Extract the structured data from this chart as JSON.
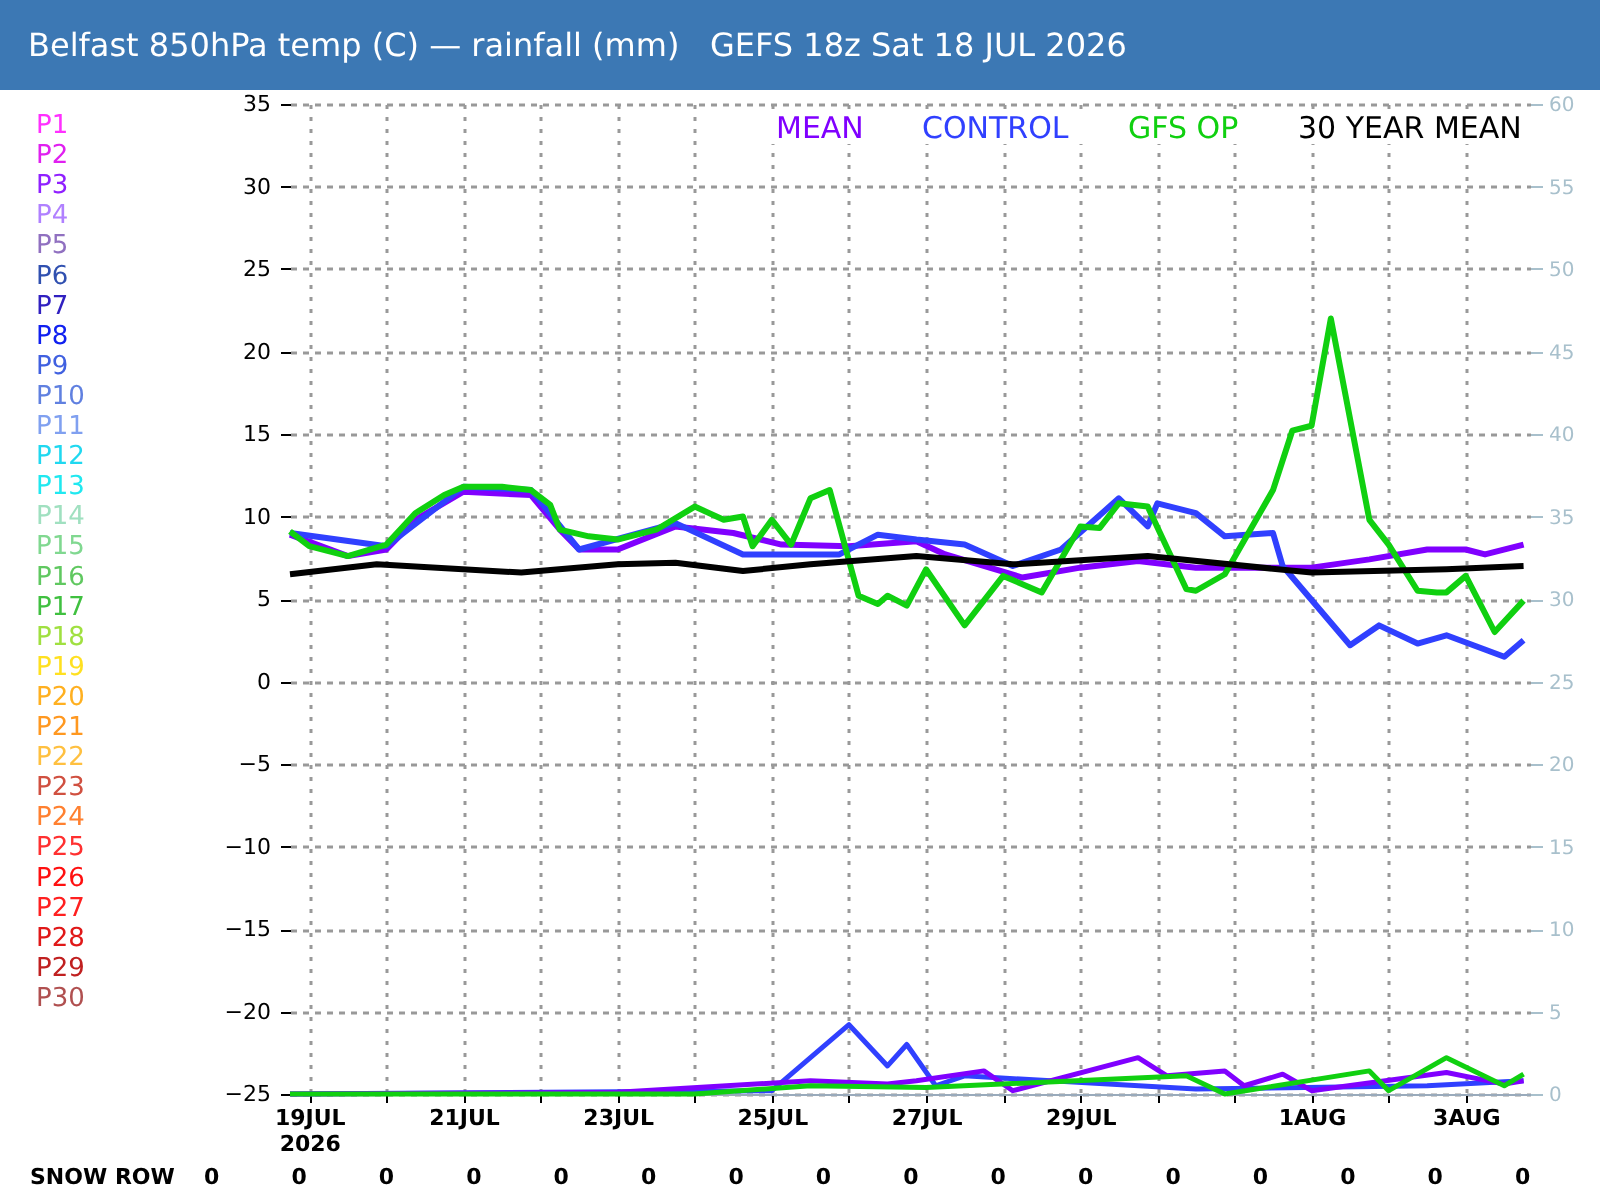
{
  "chart_data": {
    "type": "line",
    "title": "Belfast 850hPa temp (C) — rainfall (mm)   GEFS 18z Sat 18 JUL 2026",
    "xlim": [
      "2026-07-18T18:00",
      "2026-08-03T20:00"
    ],
    "xticks": [
      {
        "value": "2026-07-19",
        "label": "19JUL 2026"
      },
      {
        "value": "2026-07-20",
        "label": null
      },
      {
        "value": "2026-07-21",
        "label": "21JUL"
      },
      {
        "value": "2026-07-22",
        "label": null
      },
      {
        "value": "2026-07-23",
        "label": "23JUL"
      },
      {
        "value": "2026-07-24",
        "label": null
      },
      {
        "value": "2026-07-25",
        "label": "25JUL"
      },
      {
        "value": "2026-07-26",
        "label": null
      },
      {
        "value": "2026-07-27",
        "label": "27JUL"
      },
      {
        "value": "2026-07-28",
        "label": null
      },
      {
        "value": "2026-07-29",
        "label": "29JUL"
      },
      {
        "value": "2026-07-30",
        "label": null
      },
      {
        "value": "2026-07-31",
        "label": null
      },
      {
        "value": "2026-08-01",
        "label": "1AUG"
      },
      {
        "value": "2026-08-02",
        "label": null
      },
      {
        "value": "2026-08-03",
        "label": "3AUG"
      }
    ],
    "ylim": [
      -25,
      35
    ],
    "yticks": [
      -25,
      -20,
      -15,
      -10,
      -5,
      0,
      5,
      10,
      15,
      20,
      25,
      30,
      35
    ],
    "y2lim": [
      0,
      60
    ],
    "y2ticks": [
      0,
      5,
      10,
      15,
      20,
      25,
      30,
      35,
      40,
      45,
      50,
      55,
      60
    ],
    "grid": true,
    "legend": "top right",
    "series": [
      {
        "name": "P1",
        "color": "#ff30ff"
      },
      {
        "name": "P2",
        "color": "#e020f0"
      },
      {
        "name": "P3",
        "color": "#9020ff"
      },
      {
        "name": "P4",
        "color": "#b080ff"
      },
      {
        "name": "P5",
        "color": "#9070c0"
      },
      {
        "name": "P6",
        "color": "#3050b0"
      },
      {
        "name": "P7",
        "color": "#3020c0"
      },
      {
        "name": "P8",
        "color": "#1020f0"
      },
      {
        "name": "P9",
        "color": "#4060e0"
      },
      {
        "name": "P10",
        "color": "#6080e0"
      },
      {
        "name": "P11",
        "color": "#80a0f0"
      },
      {
        "name": "P12",
        "color": "#20d8f0"
      },
      {
        "name": "P13",
        "color": "#20e8f0"
      },
      {
        "name": "P14",
        "color": "#a0e0c0"
      },
      {
        "name": "P15",
        "color": "#80d890"
      },
      {
        "name": "P16",
        "color": "#60c860"
      },
      {
        "name": "P17",
        "color": "#40c040"
      },
      {
        "name": "P18",
        "color": "#a0e040"
      },
      {
        "name": "P19",
        "color": "#ffe020"
      },
      {
        "name": "P20",
        "color": "#ffb020"
      },
      {
        "name": "P21",
        "color": "#ff9820"
      },
      {
        "name": "P22",
        "color": "#ffc040"
      },
      {
        "name": "P23",
        "color": "#d05040"
      },
      {
        "name": "P24",
        "color": "#ff8030"
      },
      {
        "name": "P25",
        "color": "#ff3030"
      },
      {
        "name": "P26",
        "color": "#ff1010"
      },
      {
        "name": "P27",
        "color": "#ff2020"
      },
      {
        "name": "P28",
        "color": "#e01818"
      },
      {
        "name": "P29",
        "color": "#c02020"
      },
      {
        "name": "P30",
        "color": "#b05050"
      },
      {
        "name": "MEAN",
        "color": "#8000ff",
        "x": [
          "2026-07-18T18:00",
          "2026-07-19T12:00",
          "2026-07-20T00:00",
          "2026-07-20T09:00",
          "2026-07-21T00:00",
          "2026-07-21T21:00",
          "2026-07-22T06:00",
          "2026-07-22T12:00",
          "2026-07-23T00:00",
          "2026-07-23T18:00",
          "2026-07-24T12:00",
          "2026-07-25T03:00",
          "2026-07-26T00:00",
          "2026-07-26T21:00",
          "2026-07-27T06:00",
          "2026-07-28T06:00",
          "2026-07-29T00:00",
          "2026-07-29T18:00",
          "2026-07-30T12:00",
          "2026-08-01T00:00",
          "2026-08-01T18:00",
          "2026-08-02T12:00",
          "2026-08-03T00:00",
          "2026-08-03T06:00",
          "2026-08-03T18:00"
        ],
        "values": [
          8.9,
          7.6,
          8.0,
          9.8,
          11.5,
          11.3,
          9.2,
          8.0,
          8.0,
          9.4,
          9.0,
          8.3,
          8.2,
          8.5,
          7.7,
          6.3,
          6.9,
          7.3,
          6.9,
          6.9,
          7.4,
          8.0,
          8.0,
          7.7,
          8.3
        ]
      },
      {
        "name": "CONTROL",
        "color": "#3040ff",
        "x": [
          "2026-07-18T18:00",
          "2026-07-20T00:00",
          "2026-07-21T00:00",
          "2026-07-21T21:00",
          "2026-07-22T12:00",
          "2026-07-23T18:00",
          "2026-07-24T15:00",
          "2026-07-25T21:00",
          "2026-07-26T09:00",
          "2026-07-26T21:00",
          "2026-07-27T12:00",
          "2026-07-28T03:00",
          "2026-07-28T18:00",
          "2026-07-29T12:00",
          "2026-07-29T21:00",
          "2026-07-30T00:00",
          "2026-07-30T12:00",
          "2026-07-30T21:00",
          "2026-07-31T12:00",
          "2026-07-31T15:00",
          "2026-08-01T12:00",
          "2026-08-01T21:00",
          "2026-08-02T09:00",
          "2026-08-02T18:00",
          "2026-08-03T12:00",
          "2026-08-03T18:00"
        ],
        "values": [
          9.0,
          8.2,
          11.8,
          11.6,
          8.0,
          9.6,
          7.7,
          7.7,
          8.9,
          8.6,
          8.3,
          7.0,
          8.0,
          11.1,
          9.4,
          10.8,
          10.2,
          8.8,
          9.0,
          7.0,
          2.2,
          3.4,
          2.3,
          2.8,
          1.5,
          2.5
        ]
      },
      {
        "name": "GFS OP",
        "color": "#10d010",
        "x": [
          "2026-07-18T18:00",
          "2026-07-19T00:00",
          "2026-07-19T12:00",
          "2026-07-20T00:00",
          "2026-07-20T09:00",
          "2026-07-20T18:00",
          "2026-07-21T00:00",
          "2026-07-21T12:00",
          "2026-07-21T21:00",
          "2026-07-22T03:00",
          "2026-07-22T06:00",
          "2026-07-22T15:00",
          "2026-07-23T00:00",
          "2026-07-23T12:00",
          "2026-07-24T00:00",
          "2026-07-24T09:00",
          "2026-07-24T15:00",
          "2026-07-24T18:00",
          "2026-07-25T00:00",
          "2026-07-25T06:00",
          "2026-07-25T12:00",
          "2026-07-25T18:00",
          "2026-07-26T03:00",
          "2026-07-26T09:00",
          "2026-07-26T12:00",
          "2026-07-26T18:00",
          "2026-07-27T00:00",
          "2026-07-27T12:00",
          "2026-07-28T00:00",
          "2026-07-28T12:00",
          "2026-07-29T00:00",
          "2026-07-29T06:00",
          "2026-07-29T12:00",
          "2026-07-29T21:00",
          "2026-07-30T09:00",
          "2026-07-30T12:00",
          "2026-07-30T21:00",
          "2026-07-31T12:00",
          "2026-07-31T18:00",
          "2026-08-01T00:00",
          "2026-08-01T06:00",
          "2026-08-01T18:00",
          "2026-08-02T00:00",
          "2026-08-02T09:00",
          "2026-08-02T15:00",
          "2026-08-02T18:00",
          "2026-08-03T00:00",
          "2026-08-03T09:00",
          "2026-08-03T18:00"
        ],
        "values": [
          9.1,
          8.2,
          7.6,
          8.3,
          10.2,
          11.3,
          11.8,
          11.8,
          11.6,
          10.7,
          9.2,
          8.8,
          8.6,
          9.2,
          10.6,
          9.8,
          10.0,
          8.2,
          9.8,
          8.3,
          11.1,
          11.6,
          5.2,
          4.7,
          5.2,
          4.6,
          6.8,
          3.4,
          6.4,
          5.4,
          9.4,
          9.3,
          10.8,
          10.6,
          5.6,
          5.5,
          6.5,
          11.6,
          15.2,
          15.5,
          22.0,
          9.8,
          8.3,
          5.5,
          5.4,
          5.4,
          6.4,
          3.0,
          4.9
        ]
      },
      {
        "name": "30 YEAR MEAN",
        "color": "#000000",
        "x": [
          "2026-07-18T18:00",
          "2026-07-19T21:00",
          "2026-07-21T18:00",
          "2026-07-23T00:00",
          "2026-07-23T18:00",
          "2026-07-24T15:00",
          "2026-07-25T12:00",
          "2026-07-26T21:00",
          "2026-07-28T03:00",
          "2026-07-29T21:00",
          "2026-08-01T00:00",
          "2026-08-02T18:00",
          "2026-08-03T18:00"
        ],
        "values": [
          6.5,
          7.1,
          6.6,
          7.1,
          7.2,
          6.7,
          7.1,
          7.6,
          7.1,
          7.6,
          6.6,
          6.8,
          7.0
        ]
      },
      {
        "color": "#3040ff",
        "axis": "y2",
        "x": [
          "2026-07-18T18:00",
          "2026-07-25T00:00",
          "2026-07-26T00:00",
          "2026-07-26T12:00",
          "2026-07-26T18:00",
          "2026-07-27T03:00",
          "2026-07-27T12:00",
          "2026-07-30T12:00",
          "2026-08-02T12:00",
          "2026-08-03T18:00"
        ],
        "values": [
          0,
          0.2,
          4.2,
          1.7,
          3.0,
          0.5,
          1.1,
          0.3,
          0.5,
          0.8
        ]
      },
      {
        "color": "#8000ff",
        "axis": "y2",
        "x": [
          "2026-07-18T18:00",
          "2026-07-23T00:00",
          "2026-07-25T12:00",
          "2026-07-26T12:00",
          "2026-07-26T21:00",
          "2026-07-27T18:00",
          "2026-07-28T03:00",
          "2026-07-29T18:00",
          "2026-07-30T03:00",
          "2026-07-30T21:00",
          "2026-07-31T03:00",
          "2026-07-31T15:00",
          "2026-08-01T00:00",
          "2026-08-02T18:00",
          "2026-08-03T12:00",
          "2026-08-03T18:00"
        ],
        "values": [
          0,
          0.1,
          0.8,
          0.6,
          0.8,
          1.4,
          0.2,
          2.2,
          1.1,
          1.4,
          0.5,
          1.2,
          0.2,
          1.3,
          0.6,
          0.8
        ]
      },
      {
        "color": "#10d010",
        "axis": "y2",
        "x": [
          "2026-07-18T18:00",
          "2026-07-24T00:00",
          "2026-07-25T12:00",
          "2026-07-27T00:00",
          "2026-07-30T09:00",
          "2026-07-30T21:00",
          "2026-08-01T18:00",
          "2026-08-02T00:00",
          "2026-08-02T18:00",
          "2026-08-03T12:00",
          "2026-08-03T18:00"
        ],
        "values": [
          0,
          0,
          0.5,
          0.4,
          1.1,
          0,
          1.4,
          0.2,
          2.2,
          0.5,
          1.2
        ]
      }
    ],
    "annotations": [
      "SNOW ROW",
      "0",
      "0",
      "0",
      "0",
      "0",
      "0",
      "0",
      "0",
      "0",
      "0",
      "0",
      "0",
      "0",
      "0",
      "0",
      "0"
    ]
  }
}
